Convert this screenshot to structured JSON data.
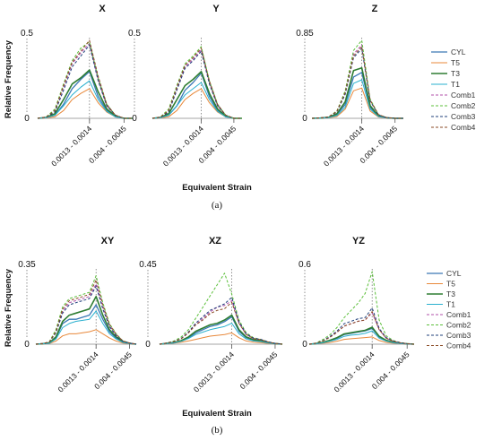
{
  "figure": {
    "caption_a": "(a)",
    "caption_b": "(b)"
  },
  "series_styles": [
    {
      "name": "CYL",
      "color": "#3a78b5",
      "dashed": false,
      "width": 1.3
    },
    {
      "name": "T5",
      "color": "#e8883a",
      "dashed": false,
      "width": 1.0
    },
    {
      "name": "T3",
      "color": "#2e7d32",
      "dashed": false,
      "width": 1.6
    },
    {
      "name": "T1",
      "color": "#2ab0cf",
      "dashed": false,
      "width": 1.0
    },
    {
      "name": "Comb1",
      "color": "#b04fa8",
      "dashed": true,
      "width": 1.0
    },
    {
      "name": "Comb2",
      "color": "#5bbf3a",
      "dashed": true,
      "width": 1.0
    },
    {
      "name": "Comb3",
      "color": "#1f3f7a",
      "dashed": true,
      "width": 1.0
    },
    {
      "name": "Comb4",
      "color": "#8a4a24",
      "dashed": true,
      "width": 1.0
    }
  ],
  "chart_data": [
    {
      "row": "a",
      "type": "line",
      "title": "X",
      "ylim": [
        0,
        0.5
      ],
      "yticks": [
        "0",
        "0.5"
      ],
      "ylabel": "Relative Frequency",
      "xlabel": "",
      "x_tick_labels": [
        "0.0013 - 0.0014",
        "0.004 - 0.0045"
      ],
      "n_points": 12,
      "peak_index": 6,
      "marked_indices": [
        6,
        10
      ],
      "series": [
        {
          "name": "CYL",
          "values": [
            0,
            0.005,
            0.02,
            0.09,
            0.19,
            0.25,
            0.3,
            0.14,
            0.05,
            0.01,
            0,
            0
          ]
        },
        {
          "name": "T5",
          "values": [
            0,
            0.003,
            0.01,
            0.05,
            0.12,
            0.16,
            0.19,
            0.1,
            0.04,
            0.01,
            0,
            0
          ]
        },
        {
          "name": "T3",
          "values": [
            0,
            0.006,
            0.03,
            0.12,
            0.22,
            0.26,
            0.31,
            0.17,
            0.06,
            0.015,
            0,
            0
          ]
        },
        {
          "name": "T1",
          "values": [
            0,
            0.004,
            0.02,
            0.08,
            0.15,
            0.2,
            0.24,
            0.12,
            0.045,
            0.01,
            0,
            0
          ]
        },
        {
          "name": "Comb1",
          "values": [
            0,
            0.008,
            0.05,
            0.2,
            0.35,
            0.42,
            0.48,
            0.25,
            0.08,
            0.02,
            0,
            0
          ]
        },
        {
          "name": "Comb2",
          "values": [
            0,
            0.009,
            0.06,
            0.22,
            0.37,
            0.45,
            0.49,
            0.26,
            0.09,
            0.02,
            0,
            0
          ]
        },
        {
          "name": "Comb3",
          "values": [
            0,
            0.007,
            0.04,
            0.18,
            0.33,
            0.4,
            0.47,
            0.24,
            0.08,
            0.02,
            0,
            0
          ]
        },
        {
          "name": "Comb4",
          "values": [
            0,
            0.008,
            0.05,
            0.21,
            0.36,
            0.43,
            0.5,
            0.27,
            0.09,
            0.02,
            0,
            0
          ]
        }
      ]
    },
    {
      "row": "a",
      "type": "line",
      "title": "Y",
      "ylim": [
        0,
        0.5
      ],
      "yticks": [
        "0",
        "0.5"
      ],
      "ylabel": "",
      "xlabel": "Equivalent Strain",
      "x_tick_labels": [
        "0.0013 - 0.0014",
        "0.004 - 0.0045"
      ],
      "n_points": 12,
      "peak_index": 6,
      "marked_indices": [
        6,
        10
      ],
      "series": [
        {
          "name": "CYL",
          "values": [
            0,
            0.005,
            0.02,
            0.08,
            0.18,
            0.23,
            0.29,
            0.14,
            0.05,
            0.01,
            0,
            0
          ]
        },
        {
          "name": "T5",
          "values": [
            0,
            0.003,
            0.01,
            0.05,
            0.12,
            0.16,
            0.19,
            0.1,
            0.04,
            0.01,
            0,
            0
          ]
        },
        {
          "name": "T3",
          "values": [
            0,
            0.006,
            0.03,
            0.12,
            0.21,
            0.25,
            0.3,
            0.16,
            0.06,
            0.015,
            0,
            0
          ]
        },
        {
          "name": "T1",
          "values": [
            0,
            0.004,
            0.02,
            0.08,
            0.15,
            0.19,
            0.23,
            0.12,
            0.045,
            0.01,
            0,
            0
          ]
        },
        {
          "name": "Comb1",
          "values": [
            0,
            0.008,
            0.05,
            0.19,
            0.33,
            0.38,
            0.44,
            0.23,
            0.08,
            0.02,
            0,
            0
          ]
        },
        {
          "name": "Comb2",
          "values": [
            0,
            0.009,
            0.06,
            0.21,
            0.35,
            0.4,
            0.46,
            0.24,
            0.09,
            0.02,
            0,
            0
          ]
        },
        {
          "name": "Comb3",
          "values": [
            0,
            0.007,
            0.04,
            0.18,
            0.32,
            0.37,
            0.43,
            0.22,
            0.08,
            0.02,
            0,
            0
          ]
        },
        {
          "name": "Comb4",
          "values": [
            0,
            0.008,
            0.05,
            0.2,
            0.34,
            0.39,
            0.45,
            0.24,
            0.09,
            0.02,
            0,
            0
          ]
        }
      ]
    },
    {
      "row": "a",
      "type": "line",
      "title": "Z",
      "ylim": [
        0,
        0.85
      ],
      "yticks": [
        "0",
        "0.85"
      ],
      "ylabel": "",
      "xlabel": "",
      "x_tick_labels": [
        "0.0013 - 0.0014",
        "0.004 - 0.0045"
      ],
      "n_points": 12,
      "peak_index": 6,
      "marked_indices": [
        6,
        10
      ],
      "series": [
        {
          "name": "CYL",
          "values": [
            0,
            0.003,
            0.01,
            0.04,
            0.15,
            0.45,
            0.5,
            0.12,
            0.02,
            0.005,
            0,
            0
          ]
        },
        {
          "name": "T5",
          "values": [
            0,
            0.002,
            0.006,
            0.02,
            0.1,
            0.3,
            0.33,
            0.08,
            0.015,
            0.004,
            0,
            0
          ]
        },
        {
          "name": "T3",
          "values": [
            0,
            0.003,
            0.01,
            0.05,
            0.18,
            0.52,
            0.55,
            0.14,
            0.025,
            0.006,
            0,
            0
          ]
        },
        {
          "name": "T1",
          "values": [
            0,
            0.002,
            0.008,
            0.03,
            0.12,
            0.38,
            0.42,
            0.1,
            0.02,
            0.005,
            0,
            0
          ]
        },
        {
          "name": "Comb1",
          "values": [
            0,
            0.004,
            0.015,
            0.07,
            0.28,
            0.7,
            0.8,
            0.2,
            0.04,
            0.008,
            0,
            0
          ]
        },
        {
          "name": "Comb2",
          "values": [
            0,
            0.004,
            0.016,
            0.08,
            0.3,
            0.74,
            0.85,
            0.21,
            0.04,
            0.008,
            0,
            0
          ]
        },
        {
          "name": "Comb3",
          "values": [
            0,
            0.004,
            0.014,
            0.07,
            0.26,
            0.66,
            0.76,
            0.19,
            0.035,
            0.007,
            0,
            0
          ]
        },
        {
          "name": "Comb4",
          "values": [
            0,
            0.004,
            0.015,
            0.075,
            0.28,
            0.68,
            0.78,
            0.2,
            0.04,
            0.008,
            0,
            0
          ]
        }
      ]
    },
    {
      "row": "b",
      "type": "line",
      "title": "XY",
      "ylim": [
        0,
        0.35
      ],
      "yticks": [
        "0",
        "0.35"
      ],
      "ylabel": "Relative Frequency",
      "xlabel": "",
      "x_tick_labels": [
        "0.0013 - 0.0014",
        "0.004 - 0.0045"
      ],
      "n_points": 16,
      "peak_index": 9,
      "marked_indices": [
        9,
        14
      ],
      "series": [
        {
          "name": "CYL",
          "values": [
            0,
            0.002,
            0.005,
            0.03,
            0.1,
            0.12,
            0.12,
            0.13,
            0.14,
            0.19,
            0.12,
            0.06,
            0.03,
            0.01,
            0.004,
            0
          ]
        },
        {
          "name": "T5",
          "values": [
            0,
            0.001,
            0.003,
            0.015,
            0.04,
            0.05,
            0.05,
            0.055,
            0.06,
            0.07,
            0.05,
            0.03,
            0.015,
            0.005,
            0.002,
            0
          ]
        },
        {
          "name": "T3",
          "values": [
            0,
            0.002,
            0.006,
            0.035,
            0.11,
            0.14,
            0.15,
            0.16,
            0.17,
            0.23,
            0.14,
            0.07,
            0.035,
            0.012,
            0.004,
            0
          ]
        },
        {
          "name": "T1",
          "values": [
            0,
            0.002,
            0.004,
            0.025,
            0.08,
            0.1,
            0.11,
            0.115,
            0.12,
            0.16,
            0.1,
            0.05,
            0.025,
            0.008,
            0.003,
            0
          ]
        },
        {
          "name": "Comb1",
          "values": [
            0,
            0.003,
            0.01,
            0.06,
            0.16,
            0.2,
            0.21,
            0.22,
            0.23,
            0.29,
            0.18,
            0.09,
            0.045,
            0.015,
            0.005,
            0
          ]
        },
        {
          "name": "Comb2",
          "values": [
            0,
            0.003,
            0.011,
            0.07,
            0.18,
            0.22,
            0.23,
            0.24,
            0.25,
            0.33,
            0.2,
            0.1,
            0.05,
            0.016,
            0.006,
            0
          ]
        },
        {
          "name": "Comb3",
          "values": [
            0,
            0.003,
            0.009,
            0.055,
            0.15,
            0.19,
            0.2,
            0.21,
            0.22,
            0.28,
            0.17,
            0.085,
            0.04,
            0.014,
            0.005,
            0
          ]
        },
        {
          "name": "Comb4",
          "values": [
            0,
            0.003,
            0.01,
            0.06,
            0.17,
            0.21,
            0.22,
            0.23,
            0.24,
            0.31,
            0.19,
            0.095,
            0.048,
            0.015,
            0.006,
            0
          ]
        }
      ]
    },
    {
      "row": "b",
      "type": "line",
      "title": "XZ",
      "ylim": [
        0,
        0.45
      ],
      "yticks": [
        "0",
        "0.45"
      ],
      "ylabel": "",
      "xlabel": "Equivalent Strain",
      "x_tick_labels": [
        "0.0013 - 0.0014",
        "0.004 - 0.0045"
      ],
      "n_points": 18,
      "peak_index": 10,
      "marked_indices": [
        10,
        16
      ],
      "series": [
        {
          "name": "CYL",
          "values": [
            0,
            0.005,
            0.01,
            0.02,
            0.04,
            0.07,
            0.09,
            0.11,
            0.12,
            0.14,
            0.17,
            0.08,
            0.04,
            0.025,
            0.02,
            0.01,
            0.004,
            0
          ]
        },
        {
          "name": "T5",
          "values": [
            0,
            0.003,
            0.006,
            0.012,
            0.02,
            0.03,
            0.04,
            0.05,
            0.055,
            0.06,
            0.07,
            0.04,
            0.02,
            0.012,
            0.01,
            0.005,
            0.002,
            0
          ]
        },
        {
          "name": "T3",
          "values": [
            0,
            0.005,
            0.01,
            0.022,
            0.045,
            0.08,
            0.1,
            0.12,
            0.13,
            0.15,
            0.18,
            0.09,
            0.045,
            0.028,
            0.022,
            0.011,
            0.004,
            0
          ]
        },
        {
          "name": "T1",
          "values": [
            0,
            0.004,
            0.008,
            0.018,
            0.035,
            0.06,
            0.075,
            0.09,
            0.1,
            0.11,
            0.13,
            0.065,
            0.032,
            0.02,
            0.016,
            0.008,
            0.003,
            0
          ]
        },
        {
          "name": "Comb1",
          "values": [
            0,
            0.007,
            0.015,
            0.035,
            0.07,
            0.12,
            0.16,
            0.2,
            0.23,
            0.24,
            0.27,
            0.13,
            0.06,
            0.035,
            0.028,
            0.014,
            0.005,
            0
          ]
        },
        {
          "name": "Comb2",
          "values": [
            0,
            0.008,
            0.02,
            0.045,
            0.09,
            0.16,
            0.23,
            0.3,
            0.37,
            0.44,
            0.31,
            0.15,
            0.07,
            0.04,
            0.03,
            0.015,
            0.005,
            0
          ]
        },
        {
          "name": "Comb3",
          "values": [
            0,
            0.007,
            0.016,
            0.036,
            0.075,
            0.13,
            0.17,
            0.21,
            0.23,
            0.25,
            0.29,
            0.14,
            0.065,
            0.038,
            0.03,
            0.015,
            0.005,
            0
          ]
        },
        {
          "name": "Comb4",
          "values": [
            0,
            0.007,
            0.015,
            0.034,
            0.07,
            0.12,
            0.15,
            0.19,
            0.21,
            0.22,
            0.26,
            0.13,
            0.06,
            0.035,
            0.028,
            0.014,
            0.005,
            0
          ]
        }
      ]
    },
    {
      "row": "b",
      "type": "line",
      "title": "YZ",
      "ylim": [
        0,
        0.6
      ],
      "yticks": [
        "0",
        "0.6"
      ],
      "ylabel": "",
      "xlabel": "",
      "x_tick_labels": [
        "0.0013 - 0.0014",
        "0.004 - 0.0045"
      ],
      "n_points": 16,
      "peak_index": 9,
      "marked_indices": [
        9,
        14
      ],
      "series": [
        {
          "name": "CYL",
          "values": [
            0,
            0.005,
            0.015,
            0.03,
            0.05,
            0.08,
            0.09,
            0.1,
            0.11,
            0.13,
            0.06,
            0.03,
            0.015,
            0.008,
            0.003,
            0
          ]
        },
        {
          "name": "T5",
          "values": [
            0,
            0.003,
            0.008,
            0.015,
            0.025,
            0.04,
            0.045,
            0.05,
            0.055,
            0.06,
            0.03,
            0.015,
            0.008,
            0.004,
            0.002,
            0
          ]
        },
        {
          "name": "T3",
          "values": [
            0,
            0.005,
            0.016,
            0.033,
            0.055,
            0.085,
            0.095,
            0.105,
            0.115,
            0.14,
            0.065,
            0.032,
            0.016,
            0.008,
            0.003,
            0
          ]
        },
        {
          "name": "T1",
          "values": [
            0,
            0.004,
            0.012,
            0.025,
            0.04,
            0.065,
            0.075,
            0.08,
            0.09,
            0.11,
            0.05,
            0.025,
            0.012,
            0.006,
            0.002,
            0
          ]
        },
        {
          "name": "Comb1",
          "values": [
            0,
            0.008,
            0.03,
            0.06,
            0.1,
            0.15,
            0.17,
            0.19,
            0.2,
            0.26,
            0.12,
            0.05,
            0.025,
            0.012,
            0.004,
            0
          ]
        },
        {
          "name": "Comb2",
          "values": [
            0,
            0.01,
            0.04,
            0.08,
            0.14,
            0.22,
            0.28,
            0.34,
            0.42,
            0.6,
            0.2,
            0.07,
            0.03,
            0.014,
            0.005,
            0
          ]
        },
        {
          "name": "Comb3",
          "values": [
            0,
            0.008,
            0.03,
            0.065,
            0.11,
            0.17,
            0.19,
            0.21,
            0.22,
            0.3,
            0.13,
            0.055,
            0.027,
            0.013,
            0.004,
            0
          ]
        },
        {
          "name": "Comb4",
          "values": [
            0,
            0.008,
            0.028,
            0.058,
            0.1,
            0.15,
            0.17,
            0.19,
            0.2,
            0.27,
            0.12,
            0.05,
            0.025,
            0.012,
            0.004,
            0
          ]
        }
      ]
    }
  ]
}
